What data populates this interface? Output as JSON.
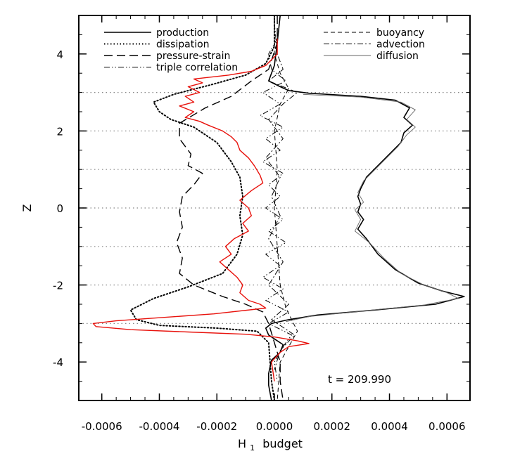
{
  "chart_data": {
    "type": "line",
    "xlabel": "H",
    "xlabel_sub": "1",
    "xlabel_tail": "budget",
    "ylabel": "Z",
    "xlim": [
      -0.00068,
      0.00068
    ],
    "ylim": [
      -5,
      5
    ],
    "x_ticks": [
      -0.0006,
      -0.0004,
      -0.0002,
      0.0,
      0.0002,
      0.0004,
      0.0006
    ],
    "x_tick_labels": [
      "-0.0006",
      "-0.0004",
      "-0.0002",
      "0.0000",
      "0.0002",
      "0.0004",
      "0.0006"
    ],
    "y_ticks": [
      -4,
      -2,
      0,
      2,
      4
    ],
    "y_tick_labels": [
      "-4",
      "-2",
      "0",
      "2",
      "4"
    ],
    "grid_y_dotted": [
      -3,
      -2,
      -1,
      0,
      1,
      2,
      3
    ],
    "annotation": "t  =  209.990",
    "legend": [
      {
        "label": "production",
        "style": "solid",
        "column": "left"
      },
      {
        "label": "dissipation",
        "style": "dotted",
        "column": "left"
      },
      {
        "label": "pressure-strain",
        "style": "longdash",
        "column": "left"
      },
      {
        "label": "triple correlation",
        "style": "dashdotdot",
        "column": "left"
      },
      {
        "label": "buoyancy",
        "style": "dashed",
        "column": "right"
      },
      {
        "label": "advection",
        "style": "dashdot",
        "column": "right"
      },
      {
        "label": "diffusion",
        "style": "thin-dotted",
        "column": "right"
      }
    ],
    "series": [
      {
        "name": "production",
        "color": "#000000",
        "dash": "",
        "width": 1.6,
        "points": [
          [
            2e-05,
            5.0
          ],
          [
            1e-05,
            4.3
          ],
          [
            0.0,
            3.7
          ],
          [
            -1e-05,
            3.5
          ],
          [
            -2e-05,
            3.3
          ],
          [
            2e-05,
            3.15
          ],
          [
            5e-05,
            3.05
          ],
          [
            0.00012,
            2.98
          ],
          [
            0.0003,
            2.9
          ],
          [
            0.00042,
            2.8
          ],
          [
            0.00047,
            2.6
          ],
          [
            0.00045,
            2.35
          ],
          [
            0.00048,
            2.15
          ],
          [
            0.00045,
            1.95
          ],
          [
            0.00044,
            1.7
          ],
          [
            0.0004,
            1.4
          ],
          [
            0.00036,
            1.1
          ],
          [
            0.00032,
            0.8
          ],
          [
            0.0003,
            0.5
          ],
          [
            0.00029,
            0.3
          ],
          [
            0.0003,
            0.1
          ],
          [
            0.00029,
            -0.1
          ],
          [
            0.00031,
            -0.3
          ],
          [
            0.00029,
            -0.55
          ],
          [
            0.00032,
            -0.8
          ],
          [
            0.00036,
            -1.2
          ],
          [
            0.00042,
            -1.6
          ],
          [
            0.0005,
            -1.95
          ],
          [
            0.00058,
            -2.15
          ],
          [
            0.00066,
            -2.3
          ],
          [
            0.00056,
            -2.5
          ],
          [
            0.00035,
            -2.65
          ],
          [
            0.00015,
            -2.78
          ],
          [
            5e-05,
            -2.9
          ],
          [
            -1e-05,
            -3.0
          ],
          [
            -3e-05,
            -3.12
          ],
          [
            -2e-05,
            -3.3
          ],
          [
            1e-05,
            -3.45
          ],
          [
            3e-05,
            -3.55
          ],
          [
            2e-05,
            -3.75
          ],
          [
            -1e-05,
            -3.95
          ],
          [
            -2e-05,
            -4.3
          ],
          [
            -2e-05,
            -4.6
          ],
          [
            -1e-05,
            -5.0
          ]
        ]
      },
      {
        "name": "diffusion",
        "color": "#666666",
        "dash": "",
        "width": 0.9,
        "points": [
          [
            0.0001,
            2.95
          ],
          [
            0.0003,
            2.88
          ],
          [
            0.00044,
            2.75
          ],
          [
            0.00049,
            2.55
          ],
          [
            0.00046,
            2.3
          ],
          [
            0.00049,
            2.1
          ],
          [
            0.00046,
            1.9
          ],
          [
            0.00043,
            1.6
          ],
          [
            0.00039,
            1.3
          ],
          [
            0.00035,
            1.0
          ],
          [
            0.00031,
            0.7
          ],
          [
            0.00029,
            0.4
          ],
          [
            0.00031,
            0.15
          ],
          [
            0.00028,
            -0.05
          ],
          [
            0.0003,
            -0.3
          ],
          [
            0.00028,
            -0.6
          ],
          [
            0.00033,
            -0.9
          ],
          [
            0.00038,
            -1.3
          ],
          [
            0.00044,
            -1.7
          ],
          [
            0.00052,
            -2.0
          ],
          [
            0.0006,
            -2.2
          ],
          [
            0.00064,
            -2.35
          ],
          [
            0.00052,
            -2.52
          ],
          [
            0.0003,
            -2.68
          ],
          [
            0.00012,
            -2.82
          ],
          [
            4e-05,
            -2.95
          ]
        ]
      },
      {
        "name": "dissipation",
        "color": "#000000",
        "dash": "1.5,3",
        "width": 2.0,
        "points": [
          [
            0.0,
            5.0
          ],
          [
            0.0,
            4.2
          ],
          [
            -3e-05,
            3.75
          ],
          [
            -0.0001,
            3.45
          ],
          [
            -0.00022,
            3.2
          ],
          [
            -0.00035,
            2.95
          ],
          [
            -0.00042,
            2.75
          ],
          [
            -0.0004,
            2.5
          ],
          [
            -0.00036,
            2.3
          ],
          [
            -0.00028,
            2.1
          ],
          [
            -0.0002,
            1.7
          ],
          [
            -0.00015,
            1.2
          ],
          [
            -0.00012,
            0.8
          ],
          [
            -0.00011,
            0.3
          ],
          [
            -0.00012,
            -0.2
          ],
          [
            -0.00011,
            -0.7
          ],
          [
            -0.00013,
            -1.2
          ],
          [
            -0.00018,
            -1.7
          ],
          [
            -0.0003,
            -2.05
          ],
          [
            -0.00042,
            -2.35
          ],
          [
            -0.0005,
            -2.65
          ],
          [
            -0.00048,
            -2.9
          ],
          [
            -0.0004,
            -3.05
          ],
          [
            -0.0002,
            -3.12
          ],
          [
            -6e-05,
            -3.2
          ],
          [
            -2e-05,
            -3.5
          ],
          [
            -1e-05,
            -4.5
          ],
          [
            0.0,
            -5.0
          ]
        ]
      },
      {
        "name": "pressure-strain",
        "color": "#000000",
        "dash": "12,6",
        "width": 1.4,
        "points": [
          [
            1e-05,
            5.0
          ],
          [
            1e-05,
            4.3
          ],
          [
            -2e-05,
            3.6
          ],
          [
            -8e-05,
            3.3
          ],
          [
            -0.00015,
            2.9
          ],
          [
            -0.00024,
            2.6
          ],
          [
            -0.00033,
            2.2
          ],
          [
            -0.00033,
            1.8
          ],
          [
            -0.00029,
            1.4
          ],
          [
            -0.0003,
            1.1
          ],
          [
            -0.00025,
            0.9
          ],
          [
            -0.00028,
            0.6
          ],
          [
            -0.00032,
            0.3
          ],
          [
            -0.00033,
            -0.1
          ],
          [
            -0.00032,
            -0.5
          ],
          [
            -0.00034,
            -0.9
          ],
          [
            -0.00032,
            -1.3
          ],
          [
            -0.00033,
            -1.7
          ],
          [
            -0.00028,
            -2.0
          ],
          [
            -0.00018,
            -2.3
          ],
          [
            -0.0001,
            -2.5
          ],
          [
            -4e-05,
            -2.7
          ],
          [
            -2e-05,
            -3.0
          ],
          [
            0.0,
            -3.5
          ],
          [
            2e-05,
            -4.0
          ],
          [
            2e-05,
            -4.5
          ],
          [
            3e-05,
            -5.0
          ]
        ]
      },
      {
        "name": "triple correlation",
        "color": "#000000",
        "dash": "8,3,1.5,3,1.5,3",
        "width": 1.0,
        "points": [
          [
            1e-05,
            4.4
          ],
          [
            -2e-05,
            4.0
          ],
          [
            -1e-05,
            3.6
          ],
          [
            4e-05,
            3.3
          ],
          [
            -4e-05,
            3.0
          ],
          [
            2e-05,
            2.7
          ],
          [
            -5e-05,
            2.4
          ],
          [
            3e-05,
            2.1
          ],
          [
            -3e-05,
            1.8
          ],
          [
            2e-05,
            1.5
          ],
          [
            -4e-05,
            1.2
          ],
          [
            3e-05,
            0.9
          ],
          [
            -2e-05,
            0.6
          ],
          [
            2e-05,
            0.3
          ],
          [
            -3e-05,
            0.0
          ],
          [
            3e-05,
            -0.3
          ],
          [
            -2e-05,
            -0.6
          ],
          [
            4e-05,
            -0.9
          ],
          [
            -3e-05,
            -1.2
          ],
          [
            2e-05,
            -1.5
          ],
          [
            -4e-05,
            -1.8
          ],
          [
            3e-05,
            -2.1
          ],
          [
            -3e-05,
            -2.4
          ],
          [
            5e-05,
            -2.7
          ],
          [
            -2e-05,
            -3.0
          ],
          [
            6e-05,
            -3.3
          ],
          [
            3e-05,
            -3.6
          ],
          [
            0.0,
            -4.0
          ],
          [
            1e-05,
            -4.5
          ]
        ]
      },
      {
        "name": "buoyancy",
        "color": "#000000",
        "dash": "6,4",
        "width": 1.0,
        "points": [
          [
            0.0,
            5.0
          ],
          [
            0.0,
            4.0
          ],
          [
            2e-05,
            3.5
          ],
          [
            5e-05,
            3.1
          ],
          [
            2e-05,
            2.7
          ],
          [
            0.0,
            2.0
          ],
          [
            1e-05,
            1.0
          ],
          [
            0.0,
            0.0
          ],
          [
            1e-05,
            -1.0
          ],
          [
            2e-05,
            -2.0
          ],
          [
            4e-05,
            -2.6
          ],
          [
            8e-05,
            -3.2
          ],
          [
            5e-05,
            -3.6
          ],
          [
            2e-05,
            -4.0
          ],
          [
            1e-05,
            -5.0
          ]
        ]
      },
      {
        "name": "advection",
        "color": "#000000",
        "dash": "8,3,2,3",
        "width": 1.0,
        "points": [
          [
            0.0,
            4.8
          ],
          [
            1e-05,
            4.0
          ],
          [
            3e-05,
            3.6
          ],
          [
            -2e-05,
            3.3
          ],
          [
            8e-05,
            3.0
          ],
          [
            3e-05,
            2.7
          ],
          [
            -2e-05,
            2.3
          ],
          [
            3e-05,
            1.8
          ],
          [
            -3e-05,
            1.3
          ],
          [
            2e-05,
            0.8
          ],
          [
            -1e-05,
            0.3
          ],
          [
            2e-05,
            -0.2
          ],
          [
            -2e-05,
            -0.8
          ],
          [
            3e-05,
            -1.4
          ],
          [
            -2e-05,
            -2.0
          ],
          [
            5e-05,
            -2.5
          ],
          [
            -1e-05,
            -2.9
          ],
          [
            7e-05,
            -3.3
          ],
          [
            2e-05,
            -3.7
          ],
          [
            0.0,
            -4.2
          ]
        ]
      },
      {
        "name": "red",
        "color": "#e8120c",
        "dash": "",
        "width": 1.4,
        "points": [
          [
            1e-05,
            4.4
          ],
          [
            1e-05,
            4.0
          ],
          [
            -3e-05,
            3.7
          ],
          [
            -8e-05,
            3.55
          ],
          [
            -0.00016,
            3.45
          ],
          [
            -0.00028,
            3.35
          ],
          [
            -0.00025,
            3.25
          ],
          [
            -0.0003,
            3.15
          ],
          [
            -0.00026,
            3.0
          ],
          [
            -0.00031,
            2.9
          ],
          [
            -0.00028,
            2.75
          ],
          [
            -0.00033,
            2.65
          ],
          [
            -0.00028,
            2.5
          ],
          [
            -0.00031,
            2.35
          ],
          [
            -0.00026,
            2.25
          ],
          [
            -0.00023,
            2.15
          ],
          [
            -0.00018,
            2.0
          ],
          [
            -0.00015,
            1.85
          ],
          [
            -0.00013,
            1.7
          ],
          [
            -0.00012,
            1.5
          ],
          [
            -9e-05,
            1.3
          ],
          [
            -7e-05,
            1.1
          ],
          [
            -5e-05,
            0.85
          ],
          [
            -4e-05,
            0.65
          ],
          [
            -8e-05,
            0.45
          ],
          [
            -0.00012,
            0.2
          ],
          [
            -9e-05,
            0.0
          ],
          [
            -8e-05,
            -0.2
          ],
          [
            -0.00011,
            -0.4
          ],
          [
            -9e-05,
            -0.6
          ],
          [
            -0.00014,
            -0.8
          ],
          [
            -0.00017,
            -1.0
          ],
          [
            -0.00015,
            -1.2
          ],
          [
            -0.00019,
            -1.4
          ],
          [
            -0.00016,
            -1.6
          ],
          [
            -0.00013,
            -1.8
          ],
          [
            -0.00011,
            -2.0
          ],
          [
            -0.00012,
            -2.2
          ],
          [
            -9e-05,
            -2.4
          ],
          [
            -5e-05,
            -2.5
          ],
          [
            -3e-05,
            -2.6
          ],
          [
            -0.00021,
            -2.75
          ],
          [
            -0.0004,
            -2.85
          ],
          [
            -0.00055,
            -2.93
          ],
          [
            -0.00063,
            -3.0
          ],
          [
            -0.00062,
            -3.08
          ],
          [
            -0.0005,
            -3.16
          ],
          [
            -0.0003,
            -3.22
          ],
          [
            -0.0001,
            -3.28
          ],
          [
            0.0,
            -3.35
          ],
          [
            8e-05,
            -3.45
          ],
          [
            0.00012,
            -3.52
          ],
          [
            5e-05,
            -3.6
          ],
          [
            2e-05,
            -3.75
          ],
          [
            -1e-05,
            -4.0
          ],
          [
            0.0,
            -4.5
          ]
        ]
      }
    ]
  }
}
